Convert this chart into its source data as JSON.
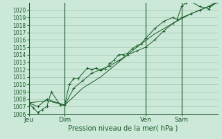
{
  "title": "Pression niveau de la mer( hPa )",
  "bg_color": "#cce8d8",
  "grid_color": "#a0c8b0",
  "line_color": "#1a5c28",
  "dark_line_color": "#1a5c28",
  "ylim": [
    1006,
    1021
  ],
  "yticks": [
    1006,
    1007,
    1008,
    1009,
    1010,
    1011,
    1012,
    1013,
    1014,
    1015,
    1016,
    1017,
    1018,
    1019,
    1020
  ],
  "xtick_labels": [
    "Jeu",
    "Dim",
    "Ven",
    "Sam"
  ],
  "xtick_positions": [
    0,
    16,
    52,
    68
  ],
  "xmax": 84,
  "series1_x": [
    0,
    2,
    4,
    6,
    8,
    10,
    14,
    16,
    18,
    20,
    22,
    26,
    28,
    30,
    32,
    34,
    36,
    38,
    40,
    42,
    44,
    46,
    48,
    50,
    52,
    56,
    60,
    64,
    66,
    68,
    70,
    72,
    76,
    80,
    84
  ],
  "series1_y": [
    1007.5,
    1006.8,
    1006.2,
    1006.6,
    1007.0,
    1009.0,
    1007.2,
    1007.2,
    1010.0,
    1010.8,
    1010.8,
    1012.2,
    1012.0,
    1012.2,
    1011.9,
    1012.1,
    1012.8,
    1013.3,
    1014.0,
    1014.0,
    1014.2,
    1014.8,
    1015.2,
    1015.5,
    1016.2,
    1017.5,
    1018.5,
    1019.0,
    1018.8,
    1020.5,
    1021.0,
    1021.2,
    1020.5,
    1020.2,
    1021.2
  ],
  "series2_x": [
    0,
    4,
    8,
    16,
    20,
    24,
    28,
    32,
    36,
    40,
    44,
    48,
    52,
    56,
    60,
    64,
    68,
    72,
    76,
    80,
    84
  ],
  "series2_y": [
    1007.5,
    1007.0,
    1008.0,
    1007.2,
    1009.5,
    1010.5,
    1011.5,
    1012.0,
    1012.5,
    1013.2,
    1014.0,
    1014.5,
    1015.0,
    1016.0,
    1017.2,
    1018.2,
    1019.0,
    1019.5,
    1020.0,
    1020.5,
    1021.2
  ],
  "series3_x": [
    0,
    8,
    16,
    24,
    32,
    40,
    48,
    56,
    64,
    72,
    80,
    84
  ],
  "series3_y": [
    1007.5,
    1007.8,
    1007.2,
    1009.5,
    1011.0,
    1013.0,
    1015.0,
    1016.8,
    1018.2,
    1019.5,
    1020.5,
    1021.0
  ],
  "vline_positions": [
    0,
    16,
    52,
    68
  ],
  "xlabel_fontsize": 7,
  "ytick_fontsize": 5.5,
  "xtick_fontsize": 6.5
}
